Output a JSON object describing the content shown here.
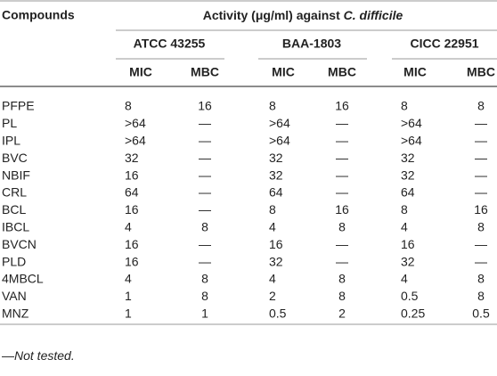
{
  "table": {
    "header": {
      "compounds": "Compounds",
      "activity": "Activity (μg/ml) against ",
      "organism": "C. difficile"
    },
    "strains": [
      "ATCC 43255",
      "BAA-1803",
      "CICC 22951"
    ],
    "subheaders": [
      "MIC",
      "MBC",
      "MIC",
      "MBC",
      "MIC",
      "MBC"
    ],
    "rows": [
      [
        "PFPE",
        "8",
        "16",
        "8",
        "16",
        "8",
        "8"
      ],
      [
        "PL",
        ">64",
        "—",
        ">64",
        "—",
        ">64",
        "—"
      ],
      [
        "IPL",
        ">64",
        "—",
        ">64",
        "—",
        ">64",
        "—"
      ],
      [
        "BVC",
        "32",
        "—",
        "32",
        "—",
        "32",
        "—"
      ],
      [
        "NBIF",
        "16",
        "—",
        "32",
        "—",
        "32",
        "—"
      ],
      [
        "CRL",
        "64",
        "—",
        "64",
        "—",
        "64",
        "—"
      ],
      [
        "BCL",
        "16",
        "—",
        "8",
        "16",
        "8",
        "16"
      ],
      [
        "IBCL",
        "4",
        "8",
        "4",
        "8",
        "4",
        "8"
      ],
      [
        "BVCN",
        "16",
        "—",
        "16",
        "—",
        "16",
        "—"
      ],
      [
        "PLD",
        "16",
        "—",
        "32",
        "—",
        "32",
        "—"
      ],
      [
        "4MBCL",
        "4",
        "8",
        "4",
        "8",
        "4",
        "8"
      ],
      [
        "VAN",
        "1",
        "8",
        "2",
        "8",
        "0.5",
        "8"
      ],
      [
        "MNZ",
        "1",
        "1",
        "0.5",
        "2",
        "0.25",
        "0.5"
      ]
    ]
  },
  "footnote": {
    "dash": "—",
    "text": "Not tested."
  }
}
